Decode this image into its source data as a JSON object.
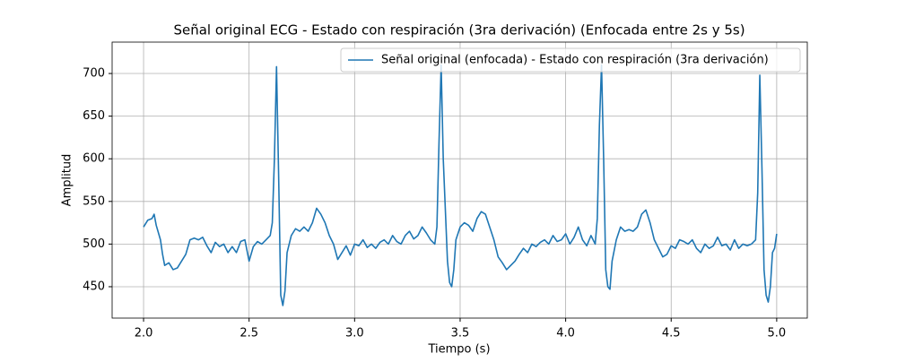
{
  "chart_data": {
    "type": "line",
    "title": "Señal original ECG - Estado con respiración (3ra derivación) (Enfocada entre 2s y 5s)",
    "x_label": "Tiempo (s)",
    "y_label": "Amplitud",
    "legend_position": "upper right",
    "grid": true,
    "xlim": [
      1.851,
      5.145
    ],
    "ylim": [
      413.2,
      736.8
    ],
    "xticks": [
      {
        "value": 2,
        "label": "2.0"
      },
      2.5,
      {
        "value": 3,
        "label": "3.0"
      },
      3.5,
      {
        "value": 4,
        "label": "4.0"
      },
      4.5,
      {
        "value": 5,
        "label": "5.0"
      }
    ],
    "yticks": [
      450,
      500,
      550,
      600,
      650,
      700
    ],
    "x": [
      2.0,
      2.02,
      2.04,
      2.05,
      2.06,
      2.08,
      2.09,
      2.1,
      2.12,
      2.14,
      2.16,
      2.18,
      2.2,
      2.22,
      2.24,
      2.26,
      2.28,
      2.3,
      2.32,
      2.34,
      2.36,
      2.38,
      2.4,
      2.42,
      2.44,
      2.46,
      2.48,
      2.5,
      2.52,
      2.54,
      2.56,
      2.58,
      2.6,
      2.61,
      2.62,
      2.63,
      2.64,
      2.65,
      2.66,
      2.67,
      2.68,
      2.7,
      2.72,
      2.74,
      2.76,
      2.78,
      2.8,
      2.82,
      2.84,
      2.86,
      2.88,
      2.9,
      2.92,
      2.94,
      2.96,
      2.98,
      3.0,
      3.02,
      3.04,
      3.06,
      3.08,
      3.1,
      3.12,
      3.14,
      3.16,
      3.18,
      3.2,
      3.22,
      3.24,
      3.26,
      3.28,
      3.3,
      3.32,
      3.34,
      3.36,
      3.38,
      3.39,
      3.4,
      3.41,
      3.42,
      3.44,
      3.45,
      3.46,
      3.47,
      3.48,
      3.5,
      3.52,
      3.54,
      3.56,
      3.58,
      3.6,
      3.62,
      3.64,
      3.66,
      3.68,
      3.7,
      3.72,
      3.74,
      3.76,
      3.78,
      3.8,
      3.82,
      3.84,
      3.86,
      3.88,
      3.9,
      3.92,
      3.94,
      3.96,
      3.98,
      4.0,
      4.02,
      4.04,
      4.06,
      4.08,
      4.1,
      4.12,
      4.14,
      4.15,
      4.16,
      4.17,
      4.18,
      4.19,
      4.2,
      4.21,
      4.22,
      4.24,
      4.26,
      4.28,
      4.3,
      4.32,
      4.34,
      4.36,
      4.38,
      4.4,
      4.42,
      4.44,
      4.46,
      4.48,
      4.5,
      4.52,
      4.54,
      4.56,
      4.58,
      4.6,
      4.62,
      4.64,
      4.66,
      4.68,
      4.7,
      4.72,
      4.74,
      4.76,
      4.78,
      4.8,
      4.82,
      4.84,
      4.86,
      4.88,
      4.9,
      4.91,
      4.92,
      4.93,
      4.94,
      4.95,
      4.96,
      4.97,
      4.98,
      4.99,
      5.0
    ],
    "series": [
      {
        "name": "Señal original (enfocada) - Estado con respiración (3ra derivación)",
        "color": "#1f77b4",
        "values": [
          520,
          528,
          530,
          535,
          522,
          505,
          488,
          475,
          478,
          470,
          472,
          480,
          488,
          505,
          507,
          505,
          508,
          498,
          490,
          502,
          497,
          500,
          490,
          497,
          490,
          503,
          505,
          480,
          497,
          503,
          500,
          505,
          510,
          525,
          600,
          708,
          580,
          440,
          428,
          445,
          490,
          510,
          518,
          515,
          520,
          515,
          525,
          542,
          535,
          525,
          510,
          500,
          482,
          490,
          498,
          487,
          500,
          498,
          505,
          496,
          500,
          495,
          502,
          505,
          500,
          510,
          503,
          500,
          510,
          515,
          506,
          510,
          520,
          513,
          505,
          500,
          520,
          620,
          710,
          600,
          480,
          455,
          450,
          470,
          505,
          520,
          525,
          522,
          515,
          530,
          538,
          535,
          520,
          505,
          485,
          478,
          470,
          475,
          480,
          488,
          495,
          490,
          500,
          497,
          502,
          505,
          500,
          510,
          503,
          505,
          512,
          500,
          508,
          520,
          505,
          498,
          510,
          500,
          530,
          640,
          710,
          600,
          470,
          450,
          447,
          480,
          505,
          520,
          515,
          517,
          515,
          520,
          535,
          540,
          525,
          505,
          495,
          485,
          488,
          498,
          495,
          505,
          503,
          500,
          505,
          495,
          490,
          500,
          495,
          498,
          508,
          498,
          500,
          493,
          505,
          495,
          500,
          498,
          500,
          505,
          560,
          698,
          590,
          470,
          440,
          432,
          450,
          490,
          495,
          512
        ]
      }
    ]
  }
}
